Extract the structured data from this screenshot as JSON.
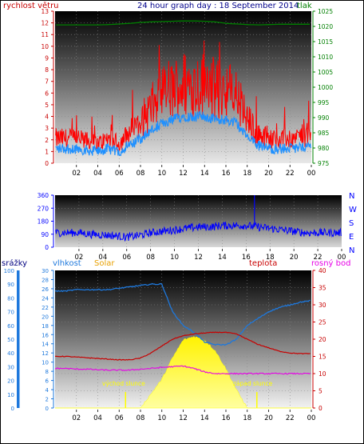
{
  "top": {
    "title": "24 hour graph day : 18 September 2014",
    "left_label": "rychlost větru",
    "right_label": "tlak",
    "left_ticks": [
      "0",
      "1",
      "2",
      "3",
      "4",
      "5",
      "6",
      "7",
      "8",
      "9",
      "10",
      "11",
      "12",
      "13"
    ],
    "right_ticks": [
      "975",
      "980",
      "985",
      "990",
      "995",
      "1000",
      "1005",
      "1010",
      "1015",
      "1020",
      "1025"
    ],
    "x_ticks": [
      "02",
      "04",
      "06",
      "08",
      "10",
      "12",
      "14",
      "16",
      "18",
      "20",
      "22",
      "00"
    ]
  },
  "middle": {
    "left_ticks": [
      "0",
      "90",
      "180",
      "270",
      "360"
    ],
    "right_letters": [
      "N",
      "W",
      "S",
      "E",
      "N"
    ],
    "x_ticks": [
      "02",
      "04",
      "06",
      "08",
      "10",
      "12",
      "14",
      "16",
      "18",
      "20",
      "22",
      "00"
    ]
  },
  "bottom": {
    "label_rain": "srážky",
    "label_humidity": "vlhkost",
    "label_solar": "Solar",
    "label_temp": "teplota",
    "label_dew": "rosný bod",
    "rain_ticks": [
      "0",
      "10",
      "20",
      "30",
      "40",
      "50",
      "60",
      "70",
      "80",
      "90",
      "100"
    ],
    "hum_ticks": [
      "0",
      "2",
      "4",
      "6",
      "8",
      "10",
      "12",
      "14",
      "16",
      "18",
      "20",
      "22",
      "24",
      "26",
      "28",
      "30"
    ],
    "temp_ticks": [
      "0",
      "5",
      "10",
      "15",
      "20",
      "25",
      "30",
      "35",
      "40"
    ],
    "sunrise": "východ slunce",
    "sunset": "západ slunce",
    "x_ticks": [
      "02",
      "04",
      "06",
      "08",
      "10",
      "12",
      "14",
      "16",
      "18",
      "20",
      "22",
      "00"
    ]
  },
  "colors": {
    "wind": "#ff0000",
    "gust": "#ff0000",
    "pressure": "#008000",
    "wind_avg": "#1e90ff",
    "direction": "#0000ff",
    "humidity": "#1e78dc",
    "temperature": "#c80000",
    "dewpoint": "#e600e6",
    "solar": "#ffff00",
    "title": "#00008b",
    "left_label": "#c80000"
  },
  "chart_data": [
    {
      "type": "line",
      "title": "24 hour graph day : 18 September 2014",
      "xlabel": "",
      "ylabel": "rychlost větru",
      "ylabel_right": "tlak",
      "ylim": [
        0,
        13
      ],
      "ylim_right": [
        975,
        1025
      ],
      "x_hours": [
        1,
        2,
        3,
        4,
        5,
        6,
        7,
        8,
        9,
        10,
        11,
        12,
        13,
        14,
        15,
        16,
        17,
        18,
        19,
        20,
        21,
        22,
        23,
        24
      ],
      "series": [
        {
          "name": "rychlost větru",
          "values": [
            2,
            2,
            1.8,
            1.6,
            2,
            1.6,
            2.5,
            3.4,
            4.5,
            5.5,
            6,
            6.5,
            6.4,
            6.5,
            6,
            6,
            5.5,
            3.5,
            2.5,
            2,
            2,
            2,
            2.2,
            2.4
          ]
        },
        {
          "name": "tlak",
          "values": [
            1020.5,
            1020.5,
            1020.5,
            1020.5,
            1020.6,
            1020.8,
            1021,
            1021.3,
            1021.5,
            1021.6,
            1021.7,
            1021.8,
            1021.8,
            1021.7,
            1021.5,
            1021,
            1020.8,
            1020.6,
            1020.5,
            1020.6,
            1020.7,
            1020.7,
            1020.7,
            1020.7
          ]
        }
      ]
    },
    {
      "type": "line",
      "ylim": [
        0,
        360
      ],
      "x_hours": [
        1,
        2,
        3,
        4,
        5,
        6,
        7,
        8,
        9,
        10,
        11,
        12,
        13,
        14,
        15,
        16,
        17,
        18,
        19,
        20,
        21,
        22,
        23,
        24
      ],
      "series": [
        {
          "name": "direction",
          "values": [
            100,
            100,
            90,
            85,
            80,
            70,
            80,
            100,
            110,
            120,
            130,
            140,
            140,
            150,
            150,
            150,
            140,
            130,
            120,
            110,
            100,
            100,
            100,
            100
          ]
        }
      ]
    },
    {
      "type": "line",
      "ylim": [
        0,
        40
      ],
      "x_hours": [
        0,
        1,
        2,
        3,
        4,
        5,
        6,
        7,
        8,
        9,
        10,
        11,
        12,
        13,
        14,
        15,
        16,
        17,
        18,
        19,
        20,
        21,
        22,
        23,
        24
      ],
      "series": [
        {
          "name": "vlhkost",
          "values": [
            85,
            85,
            86,
            86,
            86,
            86,
            87,
            88,
            89,
            90,
            90,
            70,
            60,
            55,
            48,
            46,
            46,
            50,
            60,
            65,
            70,
            73,
            75,
            77,
            78
          ]
        },
        {
          "name": "teplota",
          "values": [
            15,
            15,
            14.8,
            14.6,
            14.4,
            14.2,
            14,
            14,
            14.5,
            16,
            18,
            20,
            21,
            21.5,
            21.8,
            22,
            22,
            21.5,
            20,
            18.5,
            17.5,
            16.5,
            16,
            15.8,
            15.8
          ]
        },
        {
          "name": "rosný bod",
          "values": [
            11.5,
            11.5,
            11.3,
            11.3,
            11.1,
            11,
            11,
            11,
            11.3,
            11.5,
            11.8,
            12,
            12.2,
            11.5,
            10.5,
            10,
            10,
            10,
            10,
            10,
            10,
            10,
            10,
            10,
            10
          ]
        },
        {
          "name": "Solar",
          "values": [
            0,
            0,
            0,
            0,
            0,
            0,
            0,
            0,
            0,
            0.2,
            0.4,
            0.7,
            0.95,
            1,
            0.95,
            0.8,
            0.55,
            0.25,
            0,
            0,
            0,
            0,
            0,
            0,
            0
          ]
        }
      ]
    }
  ]
}
